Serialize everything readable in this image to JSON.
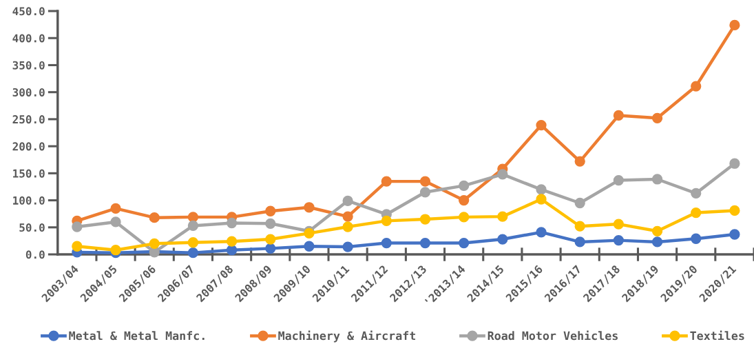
{
  "chart_data": {
    "type": "line",
    "categories": [
      "2003/04",
      "2004/05",
      "2005/06",
      "2006/07",
      "2007/08",
      "2008/09",
      "2009/10",
      "2010/11",
      "2011/12",
      "2012/13",
      "'2013/14",
      "2014/15",
      "2015/16",
      "2016/17",
      "2017/18",
      "2018/19",
      "2019/20",
      "2020/21"
    ],
    "series": [
      {
        "name": "Metal & Metal Manfc.",
        "color": "#4472c4",
        "values": [
          4,
          3,
          5,
          3,
          8,
          11,
          15,
          14,
          21,
          21,
          21,
          28,
          41,
          23,
          26,
          23,
          29,
          37
        ]
      },
      {
        "name": "Machinery & Aircraft",
        "color": "#ed7d31",
        "values": [
          62,
          85,
          68,
          69,
          69,
          80,
          87,
          70,
          135,
          135,
          100,
          158,
          239,
          172,
          257,
          252,
          311,
          424
        ]
      },
      {
        "name": "Road Motor Vehicles",
        "color": "#a5a5a5",
        "values": [
          51,
          60,
          4,
          53,
          58,
          57,
          43,
          99,
          74,
          115,
          127,
          148,
          120,
          95,
          137,
          139,
          113,
          168
        ]
      },
      {
        "name": "Textiles",
        "color": "#ffc000",
        "values": [
          15,
          8,
          20,
          22,
          24,
          28,
          39,
          51,
          62,
          65,
          69,
          70,
          102,
          52,
          56,
          43,
          77,
          81
        ]
      }
    ],
    "ylim": [
      0,
      450
    ],
    "yticks": [
      {
        "value": 0,
        "label": "0.0"
      },
      {
        "value": 50,
        "label": "50.0"
      },
      {
        "value": 100,
        "label": "100.0"
      },
      {
        "value": 150,
        "label": "150.0"
      },
      {
        "value": 200,
        "label": "200.0"
      },
      {
        "value": 250,
        "label": "250.0"
      },
      {
        "value": 300,
        "label": "300.0"
      },
      {
        "value": 350,
        "label": "350.0"
      },
      {
        "value": 400,
        "label": "400.0"
      },
      {
        "value": 450,
        "label": "450.0"
      }
    ],
    "legend": "bottom",
    "marker": "circle",
    "line_style": "solid"
  }
}
